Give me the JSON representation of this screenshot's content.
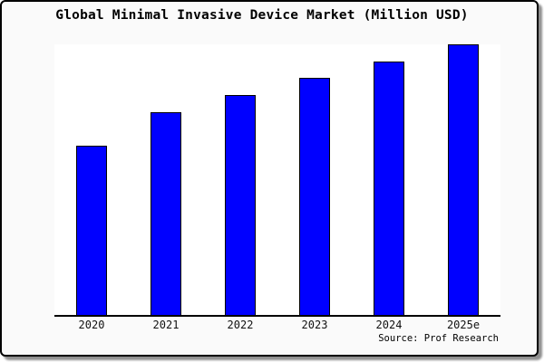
{
  "chart_data": {
    "type": "bar",
    "title": "Global Minimal Invasive Device Market (Million USD)",
    "categories": [
      "2020",
      "2021",
      "2022",
      "2023",
      "2024",
      "2025e"
    ],
    "values": [
      62.6,
      75.0,
      81.3,
      87.6,
      93.7,
      100
    ],
    "values_note": "y-axis has no tick labels; values estimated as percent of tallest bar (2025e = 100)",
    "xlabel": "",
    "ylabel": "",
    "y_axis_visible": false,
    "gridlines": false,
    "legend": "none",
    "bar_color": "#0000ff",
    "bar_border_color": "#000000",
    "source_note": "Source: Prof Research"
  },
  "colors": {
    "card_background": "#fafafa",
    "plot_background": "#ffffff",
    "axis": "#000000",
    "card_border": "#000000",
    "shadow": "#8f8f8f",
    "text": "#000000"
  }
}
